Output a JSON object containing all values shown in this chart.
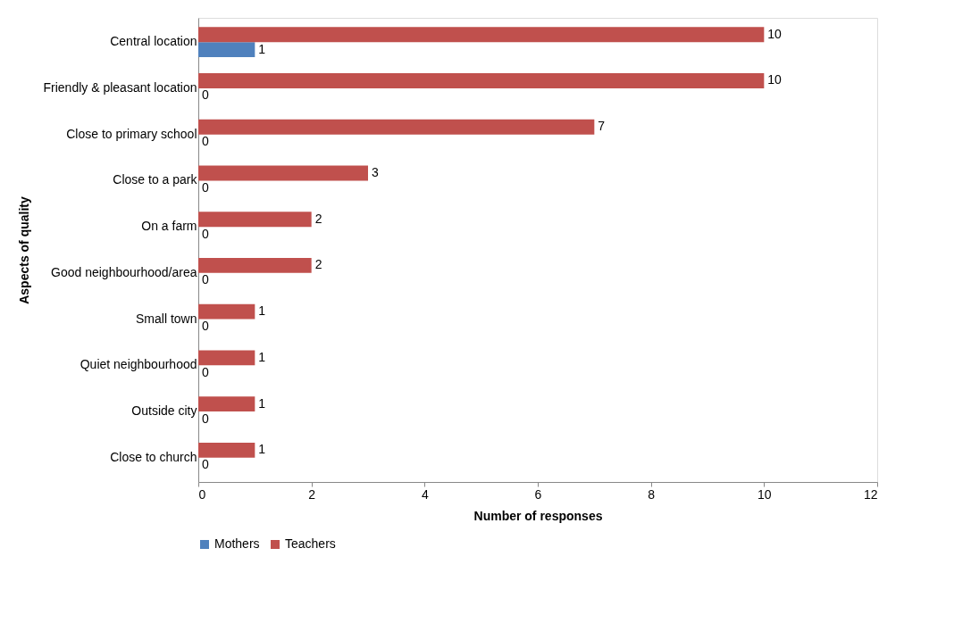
{
  "chart_data": {
    "type": "bar",
    "orientation": "horizontal",
    "xlabel": "Number of responses",
    "ylabel": "Aspects of quality",
    "categories": [
      "Central location",
      "Friendly & pleasant location",
      "Close to primary school",
      "Close to a park",
      "On a farm",
      "Good neighbourhood/area",
      "Small town",
      "Quiet neighbourhood",
      "Outside city",
      "Close to church"
    ],
    "series": [
      {
        "name": "Mothers",
        "color": "#4f81bd",
        "values": [
          1,
          0,
          0,
          0,
          0,
          0,
          0,
          0,
          0,
          0
        ]
      },
      {
        "name": "Teachers",
        "color": "#c0504d",
        "values": [
          10,
          10,
          7,
          3,
          2,
          2,
          1,
          1,
          1,
          1
        ]
      }
    ],
    "xlim": [
      0,
      12
    ],
    "xticks": [
      0,
      2,
      4,
      6,
      8,
      10,
      12
    ],
    "grid": false,
    "legend": "bottom",
    "data_labels": true
  }
}
